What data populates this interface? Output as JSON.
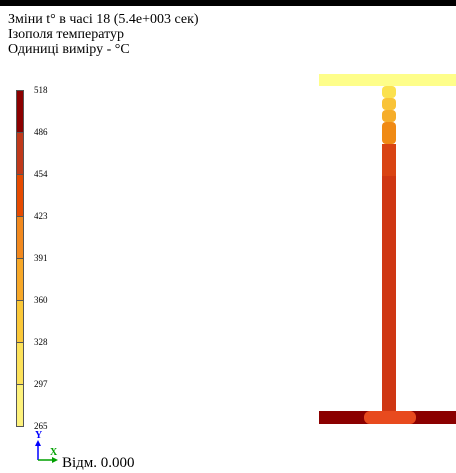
{
  "header": {
    "line1": "Зміни t° в часі 18 (5.4e+003 сек)",
    "line2": "Ізополя температур",
    "line3": "Одиниці виміру - °C"
  },
  "legend": {
    "labels": [
      "518",
      "486",
      "454",
      "423",
      "391",
      "360",
      "328",
      "297",
      "265"
    ],
    "colors": [
      "#8b0000",
      "#c0391a",
      "#e64a00",
      "#f2891e",
      "#f7a828",
      "#fbc838",
      "#fde25a",
      "#fef27c",
      "#ffffa8"
    ]
  },
  "beam": {
    "top_flange_color": "#fefe8a",
    "web_colors_top_to_bottom": [
      "#fbe14e",
      "#f9c337",
      "#f6ad2a",
      "#f08a14",
      "#d94413",
      "#cf3713"
    ],
    "bottom_flange_color": "#8b0000",
    "bottom_glow_color": "#e84a1e"
  },
  "axis": {
    "y_label": "Y",
    "x_label": "X",
    "y_color": "#0000ff",
    "x_color": "#00a000"
  },
  "offset_text": "Відм. 0.000"
}
